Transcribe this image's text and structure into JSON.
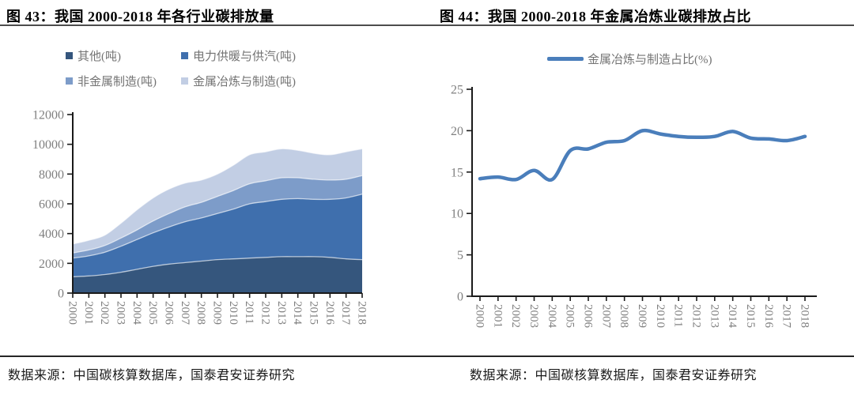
{
  "page": {
    "source_note_left": "数据来源：中国碳核算数据库，国泰君安证券研究",
    "source_note_right": "数据来源：中国碳核算数据库，国泰君安证券研究",
    "axis_label_color": "#7f7f7f",
    "axis_line_color": "#1a1a1a"
  },
  "chart_data": [
    {
      "type": "area",
      "stacked": true,
      "title": "图 43：我国 2000-2018 年各行业碳排放量",
      "categories": [
        "2000",
        "2001",
        "2002",
        "2003",
        "2004",
        "2005",
        "2006",
        "2007",
        "2008",
        "2009",
        "2010",
        "2011",
        "2012",
        "2013",
        "2014",
        "2015",
        "2016",
        "2017",
        "2018"
      ],
      "series": [
        {
          "name": "其他(吨)",
          "color": "#35567D",
          "values": [
            1100,
            1150,
            1250,
            1400,
            1600,
            1800,
            1950,
            2050,
            2150,
            2250,
            2300,
            2350,
            2400,
            2450,
            2450,
            2450,
            2400,
            2300,
            2250
          ]
        },
        {
          "name": "电力供暖与供汽(吨)",
          "color": "#3F6FAD",
          "values": [
            1250,
            1350,
            1500,
            1750,
            2000,
            2250,
            2500,
            2750,
            2900,
            3100,
            3350,
            3650,
            3750,
            3850,
            3900,
            3850,
            3900,
            4100,
            4400
          ]
        },
        {
          "name": "非金属制造(吨)",
          "color": "#7D9CC9",
          "values": [
            350,
            400,
            450,
            550,
            650,
            800,
            900,
            1000,
            1050,
            1150,
            1250,
            1350,
            1400,
            1450,
            1400,
            1350,
            1300,
            1250,
            1250
          ]
        },
        {
          "name": "金属冶炼与制造(吨)",
          "color": "#C2CEE4",
          "values": [
            600,
            650,
            700,
            1000,
            1350,
            1550,
            1650,
            1600,
            1500,
            1500,
            1700,
            1950,
            1950,
            1950,
            1850,
            1750,
            1700,
            1850,
            1800
          ]
        }
      ],
      "xlabel": "",
      "ylabel": "",
      "ylim": [
        0,
        12000
      ],
      "yticks": [
        0,
        2000,
        4000,
        6000,
        8000,
        10000,
        12000
      ],
      "grid": false,
      "legend_position": "top",
      "source": "数据来源：中国碳核算数据库，国泰君安证券研究"
    },
    {
      "type": "line",
      "title": "图 44：我国 2000-2018 年金属冶炼业碳排放占比",
      "categories": [
        "2000",
        "2001",
        "2002",
        "2003",
        "2004",
        "2005",
        "2006",
        "2007",
        "2008",
        "2009",
        "2010",
        "2011",
        "2012",
        "2013",
        "2014",
        "2015",
        "2016",
        "2017",
        "2018"
      ],
      "series": [
        {
          "name": "金属冶炼与制造占比(%)",
          "color": "#4A7EBB",
          "values": [
            14.2,
            14.4,
            14.1,
            15.2,
            14.1,
            17.6,
            17.8,
            18.6,
            18.8,
            20.0,
            19.6,
            19.3,
            19.2,
            19.3,
            19.9,
            19.1,
            19.0,
            18.8,
            19.3
          ]
        }
      ],
      "xlabel": "",
      "ylabel": "",
      "ylim": [
        0,
        25
      ],
      "yticks": [
        0,
        5,
        10,
        15,
        20,
        25
      ],
      "grid": false,
      "legend_position": "top",
      "source": "数据来源：中国碳核算数据库，国泰君安证券研究"
    }
  ]
}
